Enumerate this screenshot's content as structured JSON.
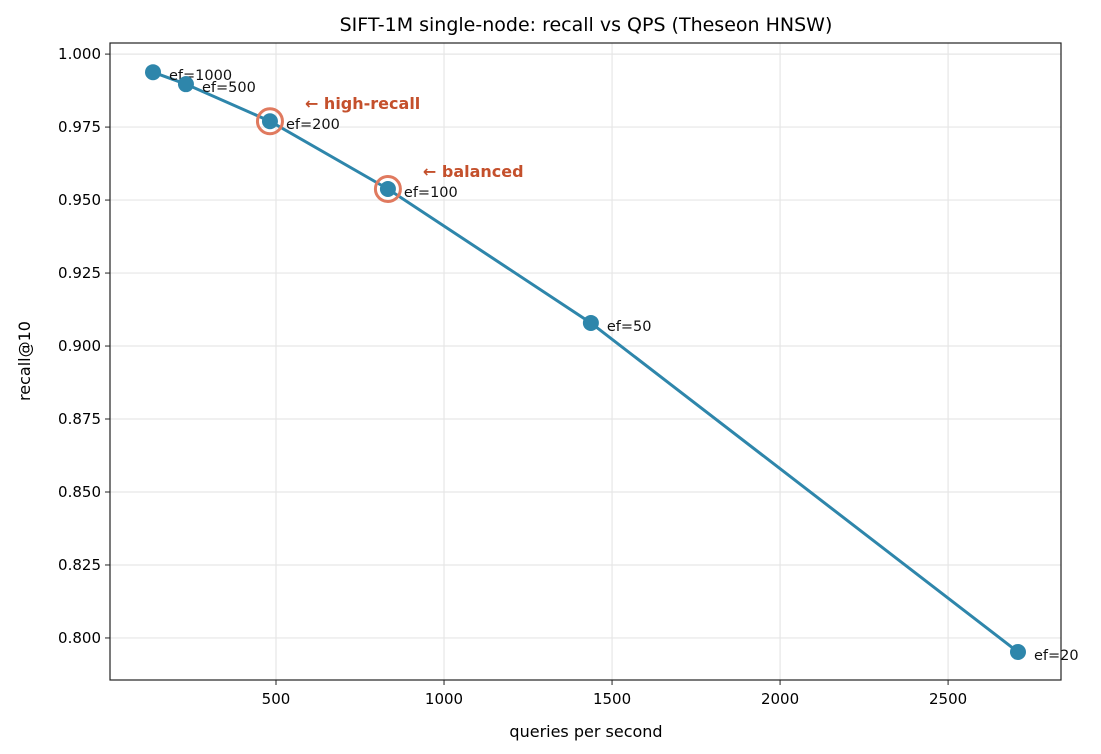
{
  "chart_data": {
    "type": "line",
    "title": "SIFT-1M single-node: recall vs QPS (Theseon HNSW)",
    "xlabel": "queries per second",
    "ylabel": "recall@10",
    "xlim": [
      6,
      2836
    ],
    "ylim": [
      0.7856,
      1.0038
    ],
    "xticks": [
      500,
      1000,
      1500,
      2000,
      2500
    ],
    "yticks": [
      0.8,
      0.825,
      0.85,
      0.875,
      0.9,
      0.925,
      0.95,
      0.975,
      1.0
    ],
    "ytick_labels": [
      "0.800",
      "0.825",
      "0.850",
      "0.875",
      "0.900",
      "0.925",
      "0.950",
      "0.975",
      "1.000"
    ],
    "xtick_labels": [
      "500",
      "1000",
      "1500",
      "2000",
      "2500"
    ],
    "grid": true,
    "series": [
      {
        "color": "#2e86ab",
        "points": [
          {
            "label": "ef=1000",
            "x": 134,
            "y": 0.9938
          },
          {
            "label": "ef=500",
            "x": 232,
            "y": 0.9897
          },
          {
            "label": "ef=200",
            "x": 482,
            "y": 0.977
          },
          {
            "label": "ef=100",
            "x": 833,
            "y": 0.9538
          },
          {
            "label": "ef=50",
            "x": 1437,
            "y": 0.9079
          },
          {
            "label": "ef=20",
            "x": 2708,
            "y": 0.7952
          }
        ]
      }
    ],
    "highlights": [
      {
        "point": "ef=200",
        "text": "← high-recall"
      },
      {
        "point": "ef=100",
        "text": "← balanced"
      }
    ],
    "highlight_ring_color": "#e07a5f",
    "annotation_color": "#c4502c"
  }
}
